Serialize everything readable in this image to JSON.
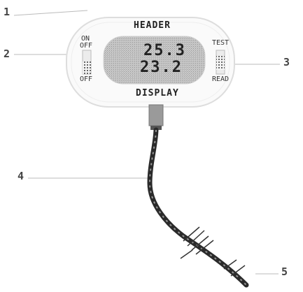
{
  "callouts": {
    "c1": "1",
    "c2": "2",
    "c3": "3",
    "c4": "4",
    "c5": "5"
  },
  "device": {
    "title": "HEADER",
    "bottom_label": "DISPLAY",
    "lcd_upper": "25.3",
    "lcd_lower": "23.2",
    "left_switch_top_a": "ON",
    "left_switch_top_b": "OFF",
    "left_switch_bottom": "OFF",
    "right_switch_top": "TEST",
    "right_switch_bottom": "READ"
  },
  "colors": {
    "bezel": "#dddddd",
    "lcd": "#bdbdbd",
    "cable": "#2a2a2a",
    "leader": "#bbbbbb"
  }
}
